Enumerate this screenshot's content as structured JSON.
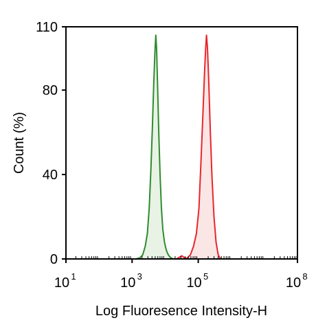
{
  "chart_data": {
    "type": "area",
    "xlabel": "Log Fluoresence Intensity-H",
    "ylabel": "Count  (%)",
    "x_scale": "log",
    "xlim": [
      10,
      100000000
    ],
    "ylim": [
      0,
      110
    ],
    "x_ticks": [
      {
        "base": "10",
        "exp": "1",
        "value": 10
      },
      {
        "base": "10",
        "exp": "3",
        "value": 1000
      },
      {
        "base": "10",
        "exp": "5",
        "value": 100000
      },
      {
        "base": "10",
        "exp": "8",
        "value": 100000000
      }
    ],
    "y_ticks": [
      {
        "label": "0",
        "value": 0
      },
      {
        "label": "40",
        "value": 40
      },
      {
        "label": "80",
        "value": 80
      },
      {
        "label": "110",
        "value": 110
      }
    ],
    "grid": false,
    "legend": "none",
    "series": [
      {
        "color": "#2e8b2e",
        "fill": "#e8f3e6",
        "points": [
          [
            1300,
            0
          ],
          [
            1700,
            0.5
          ],
          [
            2100,
            2
          ],
          [
            2500,
            6
          ],
          [
            2900,
            12
          ],
          [
            3300,
            24
          ],
          [
            3700,
            42
          ],
          [
            4100,
            62
          ],
          [
            4500,
            82
          ],
          [
            4900,
            98
          ],
          [
            5200,
            106
          ],
          [
            5500,
            100
          ],
          [
            5900,
            82
          ],
          [
            6400,
            60
          ],
          [
            7000,
            40
          ],
          [
            7700,
            24
          ],
          [
            8500,
            14
          ],
          [
            9500,
            8
          ],
          [
            10500,
            5
          ],
          [
            11500,
            3
          ],
          [
            13000,
            1.5
          ],
          [
            15000,
            0.5
          ],
          [
            18000,
            0
          ]
        ]
      },
      {
        "color": "#e8262b",
        "fill": "#fbe6e6",
        "points": [
          [
            22000,
            0
          ],
          [
            27000,
            0.8
          ],
          [
            32000,
            1.5
          ],
          [
            38000,
            0.6
          ],
          [
            46000,
            0.3
          ],
          [
            58000,
            2
          ],
          [
            72000,
            6
          ],
          [
            88000,
            12
          ],
          [
            105000,
            24
          ],
          [
            120000,
            45
          ],
          [
            138000,
            68
          ],
          [
            155000,
            88
          ],
          [
            168000,
            100
          ],
          [
            178000,
            106
          ],
          [
            190000,
            100
          ],
          [
            208000,
            84
          ],
          [
            232000,
            60
          ],
          [
            262000,
            38
          ],
          [
            300000,
            20
          ],
          [
            345000,
            8
          ],
          [
            400000,
            2
          ],
          [
            470000,
            0
          ]
        ]
      }
    ]
  }
}
